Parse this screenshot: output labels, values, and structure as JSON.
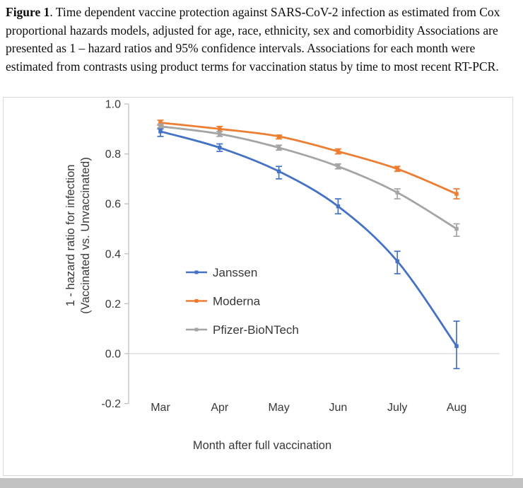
{
  "caption": {
    "label": "Figure 1",
    "text": ". Time dependent vaccine protection against SARS-CoV-2 infection as estimated from Cox proportional hazards models, adjusted for age, race, ethnicity, sex and comorbidity Associations are presented as 1 – hazard ratios and 95% confidence intervals. Associations for each month were estimated from contrasts using product terms for vaccination status by time to most recent RT-PCR."
  },
  "chart_data": {
    "type": "line",
    "title": "",
    "xlabel": "Month after full vaccination",
    "ylabel_line1": "1 - hazard ratio for infection",
    "ylabel_line2": "(Vaccinated vs. Unvaccinated)",
    "categories": [
      "Mar",
      "Apr",
      "May",
      "Jun",
      "July",
      "Aug"
    ],
    "ylim": [
      -0.2,
      1.0
    ],
    "yticks": [
      1.0,
      0.8,
      0.6,
      0.4,
      0.2,
      0.0,
      -0.2
    ],
    "grid": "zero-line-only",
    "legend_position": "inside-left-middle",
    "error_bars": "95% confidence intervals",
    "series": [
      {
        "name": "Janssen",
        "color": "#4472C4",
        "values": [
          0.89,
          0.825,
          0.73,
          0.59,
          0.37,
          0.03
        ],
        "ci_low": [
          0.87,
          0.81,
          0.7,
          0.56,
          0.32,
          -0.06
        ],
        "ci_high": [
          0.9,
          0.84,
          0.75,
          0.62,
          0.41,
          0.13
        ]
      },
      {
        "name": "Moderna",
        "color": "#ED7D31",
        "values": [
          0.925,
          0.9,
          0.87,
          0.81,
          0.74,
          0.64
        ],
        "ci_low": [
          0.915,
          0.89,
          0.86,
          0.8,
          0.73,
          0.62
        ],
        "ci_high": [
          0.935,
          0.91,
          0.875,
          0.82,
          0.75,
          0.66
        ]
      },
      {
        "name": "Pfizer-BioNTech",
        "color": "#A5A5A5",
        "values": [
          0.91,
          0.88,
          0.825,
          0.75,
          0.645,
          0.5
        ],
        "ci_low": [
          0.905,
          0.87,
          0.815,
          0.74,
          0.62,
          0.47
        ],
        "ci_high": [
          0.92,
          0.89,
          0.835,
          0.76,
          0.66,
          0.52
        ]
      }
    ]
  },
  "colors": {
    "axis_line": "#bfbfbf",
    "zero_line": "#d6d6d6",
    "frame_border": "#d9d9d9",
    "tick_text": "#383838",
    "bottom_strip": "#c2c2c2"
  }
}
